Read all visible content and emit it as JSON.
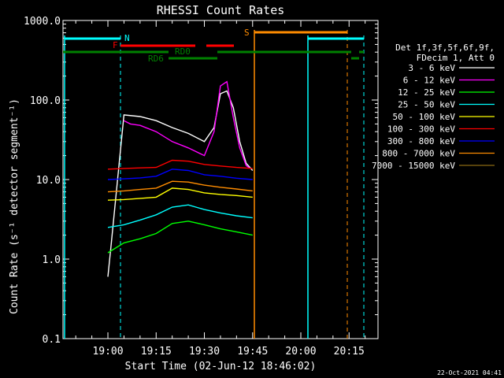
{
  "chart_data": {
    "type": "line",
    "title": "RHESSI Count Rates",
    "xlabel": "Start Time (02-Jun-12 18:46:02)",
    "ylabel": "Count Rate (s⁻¹ detector segment⁻¹)",
    "xlim": [
      "18:46:02",
      "20:24:00"
    ],
    "ylim": [
      0.1,
      1000
    ],
    "yscale": "log",
    "x_ticks": [
      "19:00",
      "19:15",
      "19:30",
      "19:45",
      "20:00",
      "20:15"
    ],
    "y_ticks": [
      "0.1",
      "1.0",
      "10.0",
      "100.0",
      "1000.0"
    ],
    "legend_header": [
      "Det 1f,3f,5f,6f,9f,",
      "FDecim 1, Att 0"
    ],
    "legend_position": "right",
    "footer": "22-Oct-2021 04:41",
    "series": [
      {
        "name": "3 - 6 keV",
        "color": "#ffffff",
        "x": [
          "19:00",
          "19:01",
          "19:05",
          "19:10",
          "19:15",
          "19:20",
          "19:25",
          "19:30",
          "19:33",
          "19:35",
          "19:37",
          "19:39",
          "19:41",
          "19:43",
          "19:45"
        ],
        "values": [
          0.6,
          1.5,
          65,
          62,
          55,
          45,
          38,
          30,
          45,
          120,
          130,
          80,
          30,
          16,
          13
        ]
      },
      {
        "name": "6 - 12 keV",
        "color": "#ff00ff",
        "x": [
          "19:05",
          "19:07",
          "19:10",
          "19:15",
          "19:20",
          "19:25",
          "19:30",
          "19:33",
          "19:35",
          "19:37",
          "19:39",
          "19:41",
          "19:43",
          "19:44"
        ],
        "values": [
          55,
          50,
          48,
          40,
          30,
          25,
          20,
          40,
          150,
          170,
          60,
          25,
          15,
          14
        ]
      },
      {
        "name": "12 - 25 keV",
        "color": "#00ff00",
        "x": [
          "19:00",
          "19:05",
          "19:10",
          "19:15",
          "19:20",
          "19:25",
          "19:30",
          "19:35",
          "19:40",
          "19:45"
        ],
        "values": [
          1.2,
          1.6,
          1.8,
          2.1,
          2.8,
          3.0,
          2.7,
          2.4,
          2.2,
          2.0
        ]
      },
      {
        "name": "25 - 50 keV",
        "color": "#00ffff",
        "x": [
          "19:00",
          "19:05",
          "19:10",
          "19:15",
          "19:20",
          "19:25",
          "19:30",
          "19:35",
          "19:40",
          "19:45"
        ],
        "values": [
          2.5,
          2.7,
          3.1,
          3.6,
          4.5,
          4.8,
          4.2,
          3.8,
          3.5,
          3.3
        ]
      },
      {
        "name": "50 - 100 keV",
        "color": "#ffff00",
        "x": [
          "19:00",
          "19:05",
          "19:10",
          "19:15",
          "19:20",
          "19:25",
          "19:30",
          "19:35",
          "19:40",
          "19:45"
        ],
        "values": [
          5.5,
          5.6,
          5.8,
          6.0,
          7.8,
          7.5,
          6.8,
          6.5,
          6.3,
          6.0
        ]
      },
      {
        "name": "100 - 300 keV",
        "color": "#ff0000",
        "x": [
          "19:00",
          "19:05",
          "19:10",
          "19:15",
          "19:20",
          "19:25",
          "19:30",
          "19:35",
          "19:40",
          "19:45"
        ],
        "values": [
          13.5,
          13.8,
          14.0,
          14.2,
          17.5,
          17.0,
          15.5,
          14.8,
          14.2,
          13.8
        ]
      },
      {
        "name": "300 - 800 keV",
        "color": "#0000ff",
        "x": [
          "19:00",
          "19:05",
          "19:10",
          "19:15",
          "19:20",
          "19:25",
          "19:30",
          "19:35",
          "19:40",
          "19:45"
        ],
        "values": [
          10.0,
          10.2,
          10.5,
          11.0,
          13.5,
          13.0,
          11.5,
          11.0,
          10.4,
          10.0
        ]
      },
      {
        "name": "800 - 7000 keV",
        "color": "#ff8c00",
        "x": [
          "19:00",
          "19:05",
          "19:10",
          "19:15",
          "19:20",
          "19:25",
          "19:30",
          "19:35",
          "19:40",
          "19:45"
        ],
        "values": [
          7.0,
          7.2,
          7.5,
          7.8,
          9.5,
          9.3,
          8.5,
          8.0,
          7.6,
          7.2
        ]
      },
      {
        "name": "7000 - 15000 keV",
        "color": "#8b6914",
        "x": [],
        "values": []
      }
    ],
    "annotations": {
      "flags": [
        {
          "label": "N",
          "color": "#00ffff"
        },
        {
          "label": "F",
          "color": "#ff0000"
        },
        {
          "label": "RD0",
          "color": "#008000"
        },
        {
          "label": "RD6",
          "color": "#008000"
        },
        {
          "label": "S",
          "color": "#ff8c00"
        }
      ]
    }
  }
}
